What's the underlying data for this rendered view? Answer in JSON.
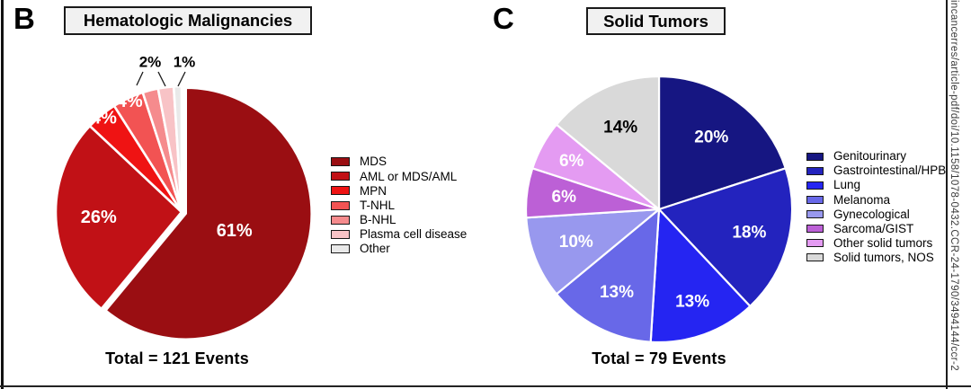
{
  "watermark": {
    "text": "lincancerres/article-pdf/doi/10.1158/1078-0432.CCR-24-1790/3494144/ccr-2"
  },
  "panels": [
    {
      "letter": "B",
      "title": "Hematologic Malignancies",
      "total": "Total = 121 Events"
    },
    {
      "letter": "C",
      "title": "Solid Tumors",
      "total": "Total = 79 Events"
    }
  ],
  "chart_data": [
    {
      "type": "pie",
      "panel": "B",
      "title": "Hematologic Malignancies",
      "total_events": 121,
      "total_label": "Total = 121 Events",
      "unit": "percent",
      "start_angle": "12-oclock",
      "direction": "clockwise",
      "legend_position": "right",
      "slices": [
        {
          "label": "MDS",
          "value": 61,
          "display": "61%",
          "color": "#9A0E12",
          "label_color": "#FFFFFF",
          "label_placement": "inside"
        },
        {
          "label": "AML or MDS/AML",
          "value": 26,
          "display": "26%",
          "color": "#C11116",
          "label_color": "#FFFFFF",
          "label_placement": "inside"
        },
        {
          "label": "MPN",
          "value": 4,
          "display": "4%",
          "color": "#EF1313",
          "label_color": "#FFFFFF",
          "label_placement": "inside"
        },
        {
          "label": "T-NHL",
          "value": 4,
          "display": "4%",
          "color": "#F25353",
          "label_color": "#FFFFFF",
          "label_placement": "inside"
        },
        {
          "label": "B-NHL",
          "value": 2,
          "display": "2%",
          "color": "#F58B8D",
          "label_color": "#000000",
          "label_placement": "callout"
        },
        {
          "label": "Plasma cell disease",
          "value": 2,
          "display": "2%",
          "color": "#F8C3C6",
          "label_color": "#000000",
          "label_placement": "callout"
        },
        {
          "label": "Other",
          "value": 1,
          "display": "1%",
          "color": "#E9E9E9",
          "label_color": "#000000",
          "label_placement": "callout"
        }
      ],
      "callout_labels": [
        {
          "text": "2%"
        },
        {
          "text": "1%"
        }
      ]
    },
    {
      "type": "pie",
      "panel": "C",
      "title": "Solid Tumors",
      "total_events": 79,
      "total_label": "Total = 79 Events",
      "unit": "percent",
      "start_angle": "12-oclock",
      "direction": "clockwise",
      "legend_position": "right",
      "slices": [
        {
          "label": "Genitourinary",
          "value": 20,
          "display": "20%",
          "color": "#161682",
          "label_color": "#FFFFFF",
          "label_placement": "inside"
        },
        {
          "label": "Gastrointestinal/HPB",
          "value": 18,
          "display": "18%",
          "color": "#2323BE",
          "label_color": "#FFFFFF",
          "label_placement": "inside"
        },
        {
          "label": "Lung",
          "value": 13,
          "display": "13%",
          "color": "#2525F2",
          "label_color": "#FFFFFF",
          "label_placement": "inside"
        },
        {
          "label": "Melanoma",
          "value": 13,
          "display": "13%",
          "color": "#6868E8",
          "label_color": "#FFFFFF",
          "label_placement": "inside"
        },
        {
          "label": "Gynecological",
          "value": 10,
          "display": "10%",
          "color": "#9898EE",
          "label_color": "#FFFFFF",
          "label_placement": "inside"
        },
        {
          "label": "Sarcoma/GIST",
          "value": 6,
          "display": "6%",
          "color": "#BC60D6",
          "label_color": "#FFFFFF",
          "label_placement": "inside"
        },
        {
          "label": "Other solid tumors",
          "value": 6,
          "display": "6%",
          "color": "#E49BF2",
          "label_color": "#FFFFFF",
          "label_placement": "inside"
        },
        {
          "label": "Solid tumors, NOS",
          "value": 14,
          "display": "14%",
          "color": "#D9D9D9",
          "label_color": "#000000",
          "label_placement": "inside"
        }
      ]
    }
  ]
}
